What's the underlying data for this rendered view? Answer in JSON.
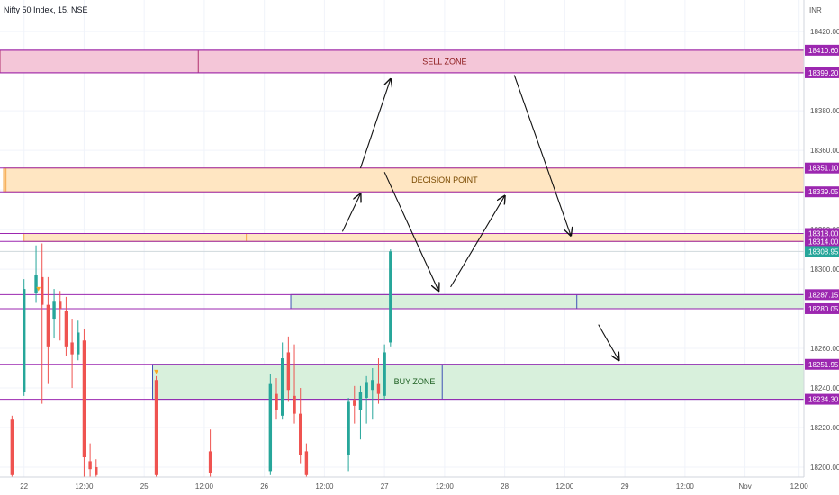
{
  "chart_data": {
    "type": "candlestick",
    "title": "Nifty 50 Index, 15, NSE",
    "currency": "INR",
    "y_axis": {
      "ylim": [
        18195,
        18436
      ],
      "ticks": [
        18200,
        18220,
        18240,
        18260,
        18280,
        18300,
        18320,
        18340,
        18360,
        18380,
        18400,
        18420
      ],
      "position": "right"
    },
    "x_axis": {
      "xlim": [
        0,
        66.9
      ],
      "tick_labels": [
        {
          "x": 2,
          "label": "22"
        },
        {
          "x": 7,
          "label": "12:00"
        },
        {
          "x": 12,
          "label": "25"
        },
        {
          "x": 17,
          "label": "12:00"
        },
        {
          "x": 22,
          "label": "26"
        },
        {
          "x": 27,
          "label": "12:00"
        },
        {
          "x": 32,
          "label": "27"
        },
        {
          "x": 37,
          "label": "12:00"
        },
        {
          "x": 42,
          "label": "28"
        },
        {
          "x": 47,
          "label": "12:00"
        },
        {
          "x": 52,
          "label": "29"
        },
        {
          "x": 57,
          "label": "12:00"
        },
        {
          "x": 62,
          "label": "Nov"
        },
        {
          "x": 66.5,
          "label": "12:00"
        }
      ]
    },
    "grid": true,
    "horizontal_lines": [
      {
        "price": 18410.6,
        "label": "18410.60",
        "color": "#9c27b0"
      },
      {
        "price": 18399.2,
        "label": "18399.20",
        "color": "#9c27b0"
      },
      {
        "price": 18351.1,
        "label": "18351.10",
        "color": "#9c27b0"
      },
      {
        "price": 18339.05,
        "label": "18339.05",
        "color": "#9c27b0"
      },
      {
        "price": 18318.0,
        "label": "18318.00",
        "color": "#9c27b0"
      },
      {
        "price": 18314.0,
        "label": "18314.00",
        "color": "#9c27b0"
      },
      {
        "price": 18287.15,
        "label": "18287.15",
        "color": "#9c27b0"
      },
      {
        "price": 18280.05,
        "label": "18280.05",
        "color": "#9c27b0"
      },
      {
        "price": 18251.95,
        "label": "18251.95",
        "color": "#9c27b0"
      },
      {
        "price": 18234.3,
        "label": "18234.30",
        "color": "#9c27b0"
      }
    ],
    "last_price": {
      "price": 18308.95,
      "label": "18308.95",
      "color": "#26a69a"
    },
    "zones": [
      {
        "label": "SELL ZONE",
        "x_from": -0.1,
        "top": 18410.6,
        "bottom": 18399.2,
        "fill": "#f4c6d8",
        "border": "#b0306e",
        "text_color": "#8b1a1a",
        "label_x": 37,
        "divider_x": 16.5
      },
      {
        "label": "DECISION POINT",
        "x_from": 0.3,
        "top": 18351.1,
        "bottom": 18339.05,
        "fill": "#ffe6c2",
        "border": "#f5a84a",
        "text_color": "#7a4a00",
        "label_x": 37,
        "divider_x": 0.5
      },
      {
        "label": "",
        "x_from": 2,
        "top": 18318.0,
        "bottom": 18314.0,
        "fill": "#ffe6c2",
        "border": "#f5a84a",
        "text_color": "#7a4a00",
        "label_x": 0,
        "divider_x": 20.5
      },
      {
        "label": "",
        "x_from": 24.2,
        "top": 18287.15,
        "bottom": 18280.05,
        "fill": "#d8f0dc",
        "border": "#3f51b5",
        "text_color": "#1b5e20",
        "label_x": 0,
        "divider_x": 48
      },
      {
        "label": "BUY ZONE",
        "x_from": 12.7,
        "top": 18251.95,
        "bottom": 18234.3,
        "fill": "#d8f0dc",
        "border": "#3f51b5",
        "text_color": "#1b5e20",
        "label_x": 34.5,
        "divider_x": 36.8
      }
    ],
    "arrows": [
      {
        "from": [
          30,
          18351
        ],
        "to": [
          32.5,
          18396
        ]
      },
      {
        "from": [
          28.5,
          18319
        ],
        "to": [
          30,
          18338
        ]
      },
      {
        "from": [
          32,
          18349
        ],
        "to": [
          36.5,
          18289
        ]
      },
      {
        "from": [
          37.5,
          18291
        ],
        "to": [
          42,
          18337
        ]
      },
      {
        "from": [
          42.8,
          18398
        ],
        "to": [
          47.5,
          18317
        ]
      },
      {
        "from": [
          49.8,
          18272
        ],
        "to": [
          51.5,
          18254
        ]
      }
    ],
    "markers": [
      {
        "x": 3.2,
        "price": 18289,
        "label": "▼",
        "color": "#f9a825"
      },
      {
        "x": 13,
        "price": 18247,
        "label": "▼",
        "color": "#f9a825"
      }
    ],
    "candles": [
      [
        1,
        18224,
        18226,
        18194,
        18196
      ],
      [
        2,
        18238,
        18295,
        18236,
        18290
      ],
      [
        3,
        18288,
        18312,
        18283,
        18297
      ],
      [
        3.5,
        18296,
        18313,
        18232,
        18282
      ],
      [
        4,
        18282,
        18296,
        18242,
        18261
      ],
      [
        4.5,
        18275,
        18290,
        18265,
        18284
      ],
      [
        5,
        18284,
        18289,
        18264,
        18280
      ],
      [
        5.5,
        18279,
        18286,
        18256,
        18261
      ],
      [
        6,
        18263,
        18275,
        18240,
        18257
      ],
      [
        6.5,
        18257,
        18274,
        18254,
        18268
      ],
      [
        7,
        18264,
        18270,
        18191,
        18205
      ],
      [
        7.5,
        18203,
        18212,
        18193,
        18199
      ],
      [
        8,
        18200,
        18204,
        18191,
        18196
      ],
      [
        13,
        18244,
        18246,
        18191,
        18196
      ],
      [
        17.5,
        18208,
        18219,
        18194,
        18197
      ],
      [
        22.5,
        18198,
        18247,
        18196,
        18242
      ],
      [
        23,
        18237,
        18245,
        18224,
        18229
      ],
      [
        23.5,
        18226,
        18263,
        18224,
        18255
      ],
      [
        24,
        18258,
        18266,
        18233,
        18239
      ],
      [
        24.5,
        18236,
        18262,
        18222,
        18227
      ],
      [
        25,
        18227,
        18240,
        18202,
        18206
      ],
      [
        25.5,
        18208,
        18212,
        18193,
        18196
      ],
      [
        29,
        18206,
        18235,
        18198,
        18233
      ],
      [
        29.5,
        18234,
        18241,
        18222,
        18231
      ],
      [
        30,
        18229,
        18241,
        18214,
        18238
      ],
      [
        30.5,
        18235,
        18246,
        18222,
        18243
      ],
      [
        31,
        18239,
        18250,
        18224,
        18244
      ],
      [
        31.5,
        18242,
        18255,
        18232,
        18237
      ],
      [
        32,
        18236,
        18262,
        18234,
        18258
      ],
      [
        32.5,
        18263,
        18310,
        18261,
        18309
      ]
    ]
  }
}
